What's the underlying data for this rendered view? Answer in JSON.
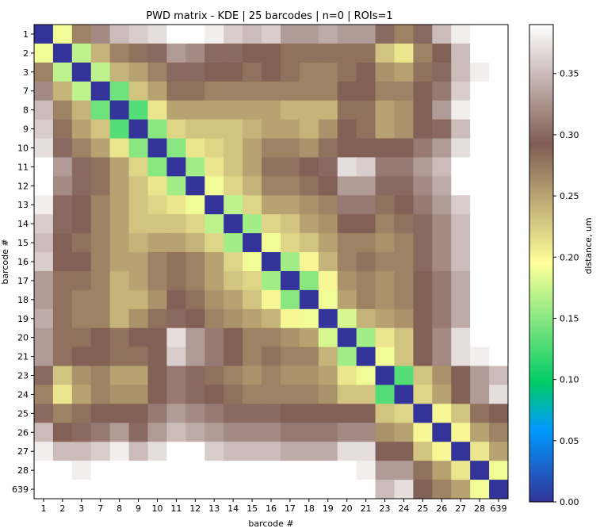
{
  "chart_data": {
    "type": "heatmap",
    "title": "PWD matrix - KDE | 25 barcodes | n=0 | ROIs=1",
    "xlabel": "barcode #",
    "ylabel": "barcode #",
    "labels": [
      "1",
      "2",
      "3",
      "7",
      "8",
      "9",
      "10",
      "11",
      "12",
      "13",
      "14",
      "15",
      "16",
      "17",
      "18",
      "19",
      "20",
      "21",
      "23",
      "24",
      "25",
      "26",
      "27",
      "28",
      "639"
    ],
    "colorbar": {
      "label": "distance, um",
      "range": [
        0.0,
        0.39
      ],
      "ticks": [
        "0.00",
        "0.05",
        "0.10",
        "0.15",
        "0.20",
        "0.25",
        "0.30",
        "0.35"
      ],
      "tick_values": [
        0.0,
        0.05,
        0.1,
        0.15,
        0.2,
        0.25,
        0.3,
        0.35
      ],
      "colormap": "terrain"
    },
    "missing_value_color": "#ffffff",
    "values": [
      [
        0.0,
        0.19,
        0.27,
        0.32,
        0.35,
        0.36,
        0.37,
        0.39,
        0.39,
        0.38,
        0.36,
        0.35,
        0.36,
        0.33,
        0.33,
        0.34,
        0.33,
        0.33,
        0.3,
        0.27,
        0.3,
        0.35,
        0.38,
        null,
        null
      ],
      [
        0.19,
        0.0,
        0.17,
        0.24,
        0.27,
        0.28,
        0.3,
        0.33,
        0.32,
        0.3,
        0.3,
        0.29,
        0.29,
        0.28,
        0.28,
        0.28,
        0.28,
        0.28,
        0.23,
        0.21,
        0.27,
        0.29,
        0.35,
        null,
        null
      ],
      [
        0.27,
        0.17,
        0.0,
        0.17,
        0.24,
        0.25,
        0.27,
        0.3,
        0.3,
        0.29,
        0.29,
        0.28,
        0.29,
        0.28,
        0.27,
        0.27,
        0.28,
        0.29,
        0.26,
        0.25,
        0.28,
        0.3,
        0.35,
        0.38,
        null
      ],
      [
        0.32,
        0.24,
        0.17,
        0.0,
        0.14,
        0.23,
        0.25,
        0.28,
        0.28,
        0.27,
        0.27,
        0.27,
        0.27,
        0.27,
        0.27,
        0.27,
        0.29,
        0.29,
        0.27,
        0.27,
        0.29,
        0.31,
        0.36,
        null,
        null
      ],
      [
        0.35,
        0.27,
        0.24,
        0.14,
        0.0,
        0.13,
        0.21,
        0.25,
        0.25,
        0.25,
        0.25,
        0.25,
        0.25,
        0.24,
        0.24,
        0.24,
        0.28,
        0.28,
        0.25,
        0.26,
        0.29,
        0.33,
        0.38,
        null,
        null
      ],
      [
        0.36,
        0.28,
        0.25,
        0.23,
        0.13,
        0.0,
        0.15,
        0.22,
        0.23,
        0.23,
        0.23,
        0.24,
        0.25,
        0.25,
        0.24,
        0.26,
        0.29,
        0.28,
        0.25,
        0.26,
        0.29,
        0.3,
        0.35,
        null,
        null
      ],
      [
        0.37,
        0.3,
        0.27,
        0.25,
        0.21,
        0.15,
        0.0,
        0.15,
        0.21,
        0.22,
        0.23,
        0.25,
        0.27,
        0.27,
        0.26,
        0.28,
        0.29,
        0.29,
        0.29,
        0.29,
        0.31,
        0.33,
        0.37,
        null,
        null
      ],
      [
        0.39,
        0.33,
        0.3,
        0.28,
        0.25,
        0.22,
        0.15,
        0.0,
        0.16,
        0.21,
        0.23,
        0.25,
        0.28,
        0.28,
        0.29,
        0.3,
        0.37,
        0.36,
        0.31,
        0.31,
        0.33,
        0.35,
        null,
        null,
        null
      ],
      [
        0.39,
        0.32,
        0.3,
        0.28,
        0.25,
        0.23,
        0.21,
        0.16,
        0.0,
        0.19,
        0.22,
        0.24,
        0.27,
        0.27,
        0.28,
        0.29,
        0.33,
        0.33,
        0.3,
        0.3,
        0.32,
        0.34,
        null,
        null,
        null
      ],
      [
        0.38,
        0.3,
        0.29,
        0.27,
        0.25,
        0.23,
        0.22,
        0.21,
        0.19,
        0.0,
        0.17,
        0.22,
        0.25,
        0.25,
        0.26,
        0.27,
        0.31,
        0.31,
        0.28,
        0.29,
        0.31,
        0.33,
        0.36,
        null,
        null
      ],
      [
        0.36,
        0.3,
        0.29,
        0.27,
        0.25,
        0.23,
        0.23,
        0.23,
        0.22,
        0.17,
        0.0,
        0.16,
        0.22,
        0.23,
        0.25,
        0.26,
        0.29,
        0.29,
        0.27,
        0.28,
        0.3,
        0.32,
        0.35,
        null,
        null
      ],
      [
        0.35,
        0.29,
        0.28,
        0.27,
        0.25,
        0.24,
        0.25,
        0.25,
        0.24,
        0.22,
        0.16,
        0.0,
        0.19,
        0.22,
        0.23,
        0.25,
        0.27,
        0.27,
        0.26,
        0.27,
        0.3,
        0.32,
        0.35,
        null,
        null
      ],
      [
        0.36,
        0.29,
        0.29,
        0.27,
        0.25,
        0.25,
        0.27,
        0.28,
        0.27,
        0.25,
        0.22,
        0.19,
        0.0,
        0.16,
        0.2,
        0.24,
        0.27,
        0.28,
        0.27,
        0.27,
        0.3,
        0.32,
        0.35,
        null,
        null
      ],
      [
        0.33,
        0.28,
        0.28,
        0.27,
        0.24,
        0.25,
        0.27,
        0.28,
        0.27,
        0.25,
        0.23,
        0.22,
        0.16,
        0.0,
        0.15,
        0.2,
        0.26,
        0.27,
        0.26,
        0.27,
        0.29,
        0.31,
        0.34,
        null,
        null
      ],
      [
        0.33,
        0.28,
        0.27,
        0.27,
        0.24,
        0.24,
        0.26,
        0.29,
        0.28,
        0.26,
        0.25,
        0.23,
        0.2,
        0.15,
        0.0,
        0.19,
        0.25,
        0.27,
        0.26,
        0.27,
        0.29,
        0.31,
        0.34,
        null,
        null
      ],
      [
        0.34,
        0.28,
        0.27,
        0.27,
        0.24,
        0.26,
        0.28,
        0.3,
        0.29,
        0.27,
        0.26,
        0.25,
        0.24,
        0.2,
        0.19,
        0.0,
        0.18,
        0.24,
        0.25,
        0.26,
        0.29,
        0.31,
        0.34,
        null,
        null
      ],
      [
        0.33,
        0.28,
        0.28,
        0.29,
        0.28,
        0.29,
        0.29,
        0.37,
        0.33,
        0.31,
        0.29,
        0.27,
        0.27,
        0.26,
        0.25,
        0.18,
        0.0,
        0.16,
        0.21,
        0.23,
        0.29,
        0.32,
        0.37,
        null,
        null
      ],
      [
        0.33,
        0.28,
        0.29,
        0.29,
        0.28,
        0.28,
        0.29,
        0.36,
        0.33,
        0.31,
        0.29,
        0.27,
        0.28,
        0.27,
        0.27,
        0.24,
        0.16,
        0.0,
        0.19,
        0.23,
        0.29,
        0.32,
        0.37,
        0.38,
        null
      ],
      [
        0.3,
        0.23,
        0.26,
        0.27,
        0.25,
        0.25,
        0.29,
        0.31,
        0.3,
        0.28,
        0.27,
        0.26,
        0.27,
        0.26,
        0.26,
        0.25,
        0.21,
        0.19,
        0.0,
        0.13,
        0.23,
        0.26,
        0.29,
        0.33,
        0.35
      ],
      [
        0.27,
        0.21,
        0.25,
        0.27,
        0.26,
        0.26,
        0.29,
        0.31,
        0.3,
        0.29,
        0.28,
        0.27,
        0.27,
        0.27,
        0.27,
        0.26,
        0.23,
        0.23,
        0.13,
        0.0,
        0.22,
        0.25,
        0.29,
        0.33,
        0.37
      ],
      [
        0.3,
        0.27,
        0.28,
        0.29,
        0.29,
        0.29,
        0.31,
        0.33,
        0.32,
        0.31,
        0.3,
        0.3,
        0.3,
        0.29,
        0.29,
        0.29,
        0.29,
        0.29,
        0.23,
        0.22,
        0.0,
        0.2,
        0.23,
        0.28,
        0.29
      ],
      [
        0.35,
        0.29,
        0.3,
        0.31,
        0.33,
        0.3,
        0.33,
        0.35,
        0.34,
        0.33,
        0.32,
        0.32,
        0.32,
        0.31,
        0.31,
        0.31,
        0.32,
        0.32,
        0.26,
        0.25,
        0.2,
        0.0,
        0.2,
        0.25,
        0.27
      ],
      [
        0.38,
        0.35,
        0.35,
        0.36,
        0.38,
        0.35,
        0.37,
        null,
        null,
        0.36,
        0.35,
        0.35,
        0.35,
        0.34,
        0.34,
        0.34,
        0.37,
        0.37,
        0.29,
        0.29,
        0.23,
        0.2,
        0.0,
        0.21,
        0.25
      ],
      [
        null,
        null,
        0.38,
        null,
        null,
        null,
        null,
        null,
        null,
        null,
        null,
        null,
        null,
        null,
        null,
        null,
        null,
        0.38,
        0.33,
        0.33,
        0.28,
        0.25,
        0.21,
        0.0,
        0.19
      ],
      [
        null,
        null,
        null,
        null,
        null,
        null,
        null,
        null,
        null,
        null,
        null,
        null,
        null,
        null,
        null,
        null,
        null,
        null,
        0.35,
        0.37,
        0.29,
        0.27,
        0.25,
        0.19,
        0.0
      ]
    ]
  }
}
